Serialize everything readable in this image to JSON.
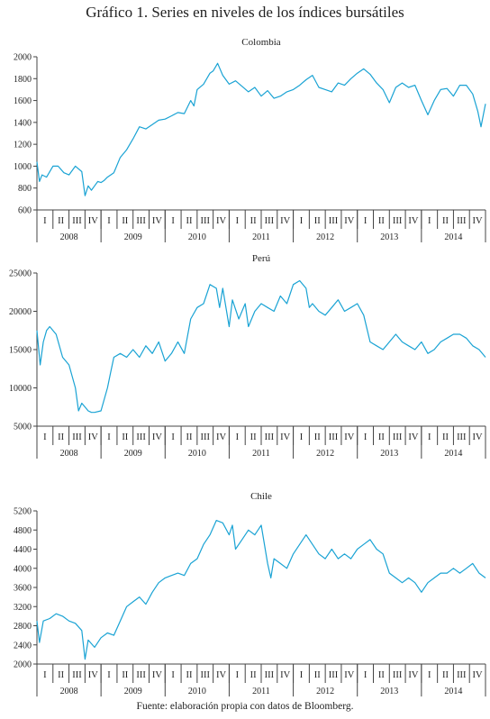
{
  "title": "Gráfico 1. Series en niveles de los índices bursátiles",
  "source": "Fuente: elaboración propia con datos de Bloomberg.",
  "line_color": "#1aa3d4",
  "chart_data": [
    {
      "type": "line",
      "title": "Colombia",
      "ylim": [
        600,
        2000
      ],
      "yticks": [
        600,
        800,
        1000,
        1200,
        1400,
        1600,
        1800,
        2000
      ],
      "years": [
        "2008",
        "2009",
        "2010",
        "2011",
        "2012",
        "2013",
        "2014"
      ],
      "quarters": [
        "I",
        "II",
        "III",
        "IV"
      ],
      "series": [
        {
          "x": [
            2008.0,
            2008.04,
            2008.08,
            2008.15,
            2008.25,
            2008.33,
            2008.42,
            2008.5,
            2008.6,
            2008.7,
            2008.75,
            2008.8,
            2008.85,
            2008.9,
            2008.95,
            2009.0,
            2009.05,
            2009.1,
            2009.2,
            2009.3,
            2009.4,
            2009.5,
            2009.6,
            2009.7,
            2009.8,
            2009.9,
            2010.0,
            2010.1,
            2010.2,
            2010.3,
            2010.4,
            2010.45,
            2010.5,
            2010.6,
            2010.7,
            2010.75,
            2010.82,
            2010.9,
            2011.0,
            2011.1,
            2011.2,
            2011.3,
            2011.4,
            2011.5,
            2011.6,
            2011.7,
            2011.8,
            2011.9,
            2012.0,
            2012.1,
            2012.2,
            2012.3,
            2012.4,
            2012.5,
            2012.6,
            2012.7,
            2012.8,
            2012.9,
            2013.0,
            2013.1,
            2013.2,
            2013.3,
            2013.4,
            2013.5,
            2013.6,
            2013.7,
            2013.8,
            2013.9,
            2014.0,
            2014.1,
            2014.2,
            2014.3,
            2014.4,
            2014.5,
            2014.6,
            2014.7,
            2014.8,
            2014.88,
            2014.93,
            2015.0
          ],
          "y": [
            1040,
            860,
            920,
            900,
            1000,
            1000,
            940,
            920,
            1000,
            950,
            730,
            820,
            780,
            820,
            860,
            850,
            870,
            900,
            940,
            1080,
            1150,
            1250,
            1360,
            1340,
            1380,
            1420,
            1430,
            1460,
            1490,
            1480,
            1600,
            1550,
            1700,
            1750,
            1850,
            1870,
            1940,
            1830,
            1750,
            1780,
            1730,
            1680,
            1720,
            1640,
            1690,
            1620,
            1640,
            1680,
            1700,
            1740,
            1790,
            1830,
            1720,
            1700,
            1680,
            1760,
            1740,
            1800,
            1850,
            1890,
            1840,
            1760,
            1700,
            1580,
            1720,
            1760,
            1720,
            1740,
            1600,
            1470,
            1600,
            1700,
            1710,
            1640,
            1740,
            1740,
            1660,
            1500,
            1360,
            1570
          ]
        }
      ]
    },
    {
      "type": "line",
      "title": "Perú",
      "ylim": [
        5000,
        25000
      ],
      "yticks": [
        5000,
        10000,
        15000,
        20000,
        25000
      ],
      "years": [
        "2008",
        "2009",
        "2010",
        "2011",
        "2012",
        "2013",
        "2014"
      ],
      "quarters": [
        "I",
        "II",
        "III",
        "IV"
      ],
      "series": [
        {
          "x": [
            2008.0,
            2008.05,
            2008.1,
            2008.15,
            2008.2,
            2008.3,
            2008.4,
            2008.5,
            2008.6,
            2008.65,
            2008.7,
            2008.75,
            2008.8,
            2008.85,
            2008.9,
            2009.0,
            2009.1,
            2009.15,
            2009.2,
            2009.3,
            2009.4,
            2009.5,
            2009.6,
            2009.7,
            2009.8,
            2009.9,
            2010.0,
            2010.1,
            2010.2,
            2010.3,
            2010.4,
            2010.5,
            2010.6,
            2010.7,
            2010.8,
            2010.85,
            2010.9,
            2011.0,
            2011.05,
            2011.15,
            2011.25,
            2011.3,
            2011.4,
            2011.5,
            2011.6,
            2011.7,
            2011.8,
            2011.9,
            2012.0,
            2012.1,
            2012.2,
            2012.25,
            2012.3,
            2012.4,
            2012.5,
            2012.6,
            2012.7,
            2012.8,
            2012.9,
            2013.0,
            2013.1,
            2013.2,
            2013.3,
            2013.4,
            2013.5,
            2013.6,
            2013.7,
            2013.8,
            2013.9,
            2014.0,
            2014.1,
            2014.2,
            2014.3,
            2014.4,
            2014.5,
            2014.6,
            2014.7,
            2014.8,
            2014.9,
            2015.0
          ],
          "y": [
            17500,
            13000,
            16000,
            17500,
            18000,
            17000,
            14000,
            13000,
            10000,
            7000,
            8000,
            7500,
            7000,
            6800,
            6800,
            7000,
            10000,
            12000,
            14000,
            14500,
            14000,
            15000,
            14000,
            15500,
            14500,
            16000,
            13500,
            14500,
            16000,
            14500,
            19000,
            20500,
            21000,
            23500,
            23000,
            20500,
            23000,
            18000,
            21500,
            19000,
            21000,
            18000,
            20000,
            21000,
            20500,
            20000,
            22000,
            21000,
            23500,
            24000,
            23000,
            20500,
            21000,
            20000,
            19500,
            20500,
            21500,
            20000,
            20500,
            21000,
            19500,
            16000,
            15500,
            15000,
            16000,
            17000,
            16000,
            15500,
            15000,
            16000,
            14500,
            15000,
            16000,
            16500,
            17000,
            17000,
            16500,
            15500,
            15000,
            14000
          ]
        }
      ]
    },
    {
      "type": "line",
      "title": "Chile",
      "ylim": [
        2000,
        5200
      ],
      "yticks": [
        2000,
        2400,
        2800,
        3200,
        3600,
        4000,
        4400,
        4800,
        5200
      ],
      "years": [
        "2008",
        "2009",
        "2010",
        "2011",
        "2012",
        "2013",
        "2014"
      ],
      "quarters": [
        "I",
        "II",
        "III",
        "IV"
      ],
      "series": [
        {
          "x": [
            2008.0,
            2008.04,
            2008.1,
            2008.2,
            2008.3,
            2008.4,
            2008.5,
            2008.6,
            2008.7,
            2008.75,
            2008.8,
            2008.9,
            2009.0,
            2009.1,
            2009.2,
            2009.3,
            2009.4,
            2009.5,
            2009.6,
            2009.7,
            2009.8,
            2009.9,
            2010.0,
            2010.1,
            2010.2,
            2010.3,
            2010.4,
            2010.5,
            2010.6,
            2010.7,
            2010.8,
            2010.9,
            2011.0,
            2011.05,
            2011.1,
            2011.2,
            2011.3,
            2011.4,
            2011.5,
            2011.6,
            2011.65,
            2011.7,
            2011.8,
            2011.9,
            2012.0,
            2012.1,
            2012.2,
            2012.3,
            2012.4,
            2012.5,
            2012.6,
            2012.7,
            2012.8,
            2012.9,
            2013.0,
            2013.1,
            2013.2,
            2013.3,
            2013.4,
            2013.5,
            2013.6,
            2013.7,
            2013.8,
            2013.9,
            2014.0,
            2014.1,
            2014.2,
            2014.3,
            2014.4,
            2014.5,
            2014.6,
            2014.7,
            2014.8,
            2014.9,
            2015.0
          ],
          "y": [
            2900,
            2450,
            2900,
            2950,
            3050,
            3000,
            2900,
            2850,
            2700,
            2100,
            2500,
            2350,
            2550,
            2650,
            2600,
            2900,
            3200,
            3300,
            3400,
            3250,
            3500,
            3700,
            3800,
            3850,
            3900,
            3850,
            4100,
            4200,
            4500,
            4700,
            5000,
            4950,
            4700,
            4900,
            4400,
            4600,
            4800,
            4700,
            4900,
            4100,
            3800,
            4200,
            4100,
            4000,
            4300,
            4500,
            4700,
            4500,
            4300,
            4200,
            4400,
            4200,
            4300,
            4200,
            4400,
            4500,
            4600,
            4400,
            4300,
            3900,
            3800,
            3700,
            3800,
            3700,
            3500,
            3700,
            3800,
            3900,
            3900,
            4000,
            3900,
            4000,
            4100,
            3900,
            3800
          ]
        }
      ]
    }
  ]
}
